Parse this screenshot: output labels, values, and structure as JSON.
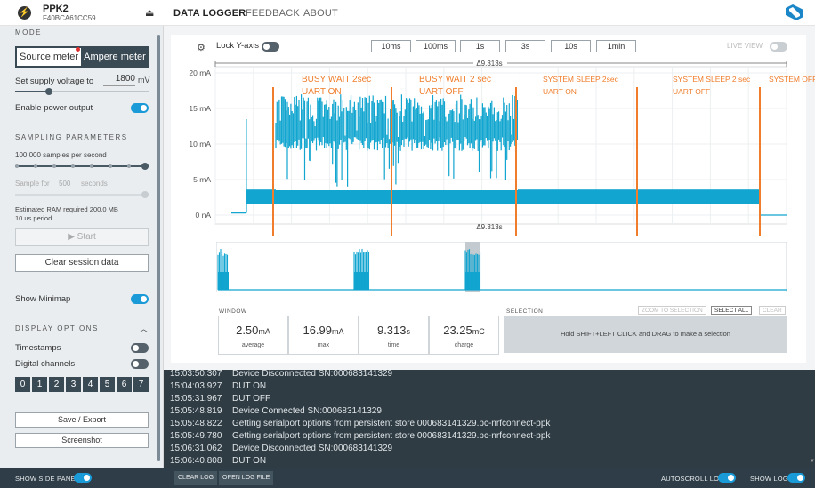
{
  "app": {
    "device_name": "PPK2",
    "serial": "F40BCA61CC59",
    "nav_tabs": [
      "DATA LOGGER",
      "FEEDBACK",
      "ABOUT"
    ]
  },
  "sidebar": {
    "mode_title": "MODE",
    "source_meter_label": "Source meter",
    "ampere_meter_label": "Ampere meter",
    "supply_voltage_label": "Set supply voltage to",
    "supply_voltage_value": "1800",
    "supply_voltage_unit": "mV",
    "enable_power_label": "Enable power output",
    "sampling_title": "SAMPLING PARAMETERS",
    "samples_label": "100,000 samples per second",
    "sample_for_label": "Sample for",
    "sample_for_value": "500",
    "sample_for_unit": "seconds",
    "ram_label": "Estimated RAM required 200.0 MB",
    "period_label": "10 us period",
    "start_label": "Start",
    "clear_session_label": "Clear session data",
    "show_minimap_label": "Show Minimap",
    "display_title": "DISPLAY OPTIONS",
    "timestamps_label": "Timestamps",
    "digital_channels_label": "Digital channels",
    "channels": [
      "0",
      "1",
      "2",
      "3",
      "4",
      "5",
      "6",
      "7"
    ],
    "save_export_label": "Save / Export",
    "screenshot_label": "Screenshot"
  },
  "toolbar": {
    "lock_y_label": "Lock Y-axis",
    "windows": [
      "10ms",
      "100ms",
      "1s",
      "3s",
      "10s",
      "1min"
    ],
    "live_view_label": "LIVE VIEW"
  },
  "chart_data": {
    "type": "line",
    "y_ticks": [
      "20 mA",
      "15 mA",
      "10 mA",
      "5 mA",
      "0 nA"
    ],
    "ylim": [
      0,
      20
    ],
    "delta_label_top": "Δ9.313s",
    "delta_label_bottom": "Δ9.313s",
    "annotations": [
      {
        "line1": "BUSY WAIT 2sec",
        "line2": "UART ON"
      },
      {
        "line1": "BUSY WAIT 2 sec",
        "line2": "UART OFF"
      },
      {
        "line1": "SYSTEM SLEEP 2sec",
        "line2": "UART ON"
      },
      {
        "line1": "SYSTEM SLEEP 2 sec",
        "line2": "UART OFF"
      },
      {
        "line1": "SYSTEM OFF",
        "line2": ""
      }
    ],
    "annotation_color": "#f07d2b",
    "series_color": "#11a5cf"
  },
  "stats": {
    "window_title": "WINDOW",
    "average": {
      "value": "2.50",
      "unit": "mA",
      "label": "average"
    },
    "max": {
      "value": "16.99",
      "unit": "mA",
      "label": "max"
    },
    "time": {
      "value": "9.313",
      "unit": "s",
      "label": "time"
    },
    "charge": {
      "value": "23.25",
      "unit": "mC",
      "label": "charge"
    }
  },
  "selection": {
    "title": "SELECTION",
    "zoom_label": "ZOOM TO SELECTION",
    "select_all_label": "SELECT ALL",
    "clear_label": "CLEAR",
    "hint": "Hold SHIFT+LEFT CLICK and DRAG to make a selection"
  },
  "log": [
    {
      "ts": "15:03:50.307",
      "msg": "Device Disconnected SN:000683141329"
    },
    {
      "ts": "15:04:03.927",
      "msg": "DUT ON"
    },
    {
      "ts": "15:05:31.967",
      "msg": "DUT OFF"
    },
    {
      "ts": "15:05:48.819",
      "msg": "Device Connected SN:000683141329"
    },
    {
      "ts": "15:05:48.822",
      "msg": "Getting serialport options from persistent store 000683141329.pc-nrfconnect-ppk"
    },
    {
      "ts": "15:05:49.780",
      "msg": "Getting serialport options from persistent store 000683141329.pc-nrfconnect-ppk"
    },
    {
      "ts": "15:06:31.062",
      "msg": "Device Disconnected SN:000683141329"
    },
    {
      "ts": "15:06:40.808",
      "msg": "DUT ON"
    }
  ],
  "bottom": {
    "show_side_panel": "SHOW SIDE PANEL",
    "clear_log": "CLEAR LOG",
    "open_log_file": "OPEN LOG FILE",
    "autoscroll_log": "AUTOSCROLL LOG",
    "show_log": "SHOW LOG"
  }
}
